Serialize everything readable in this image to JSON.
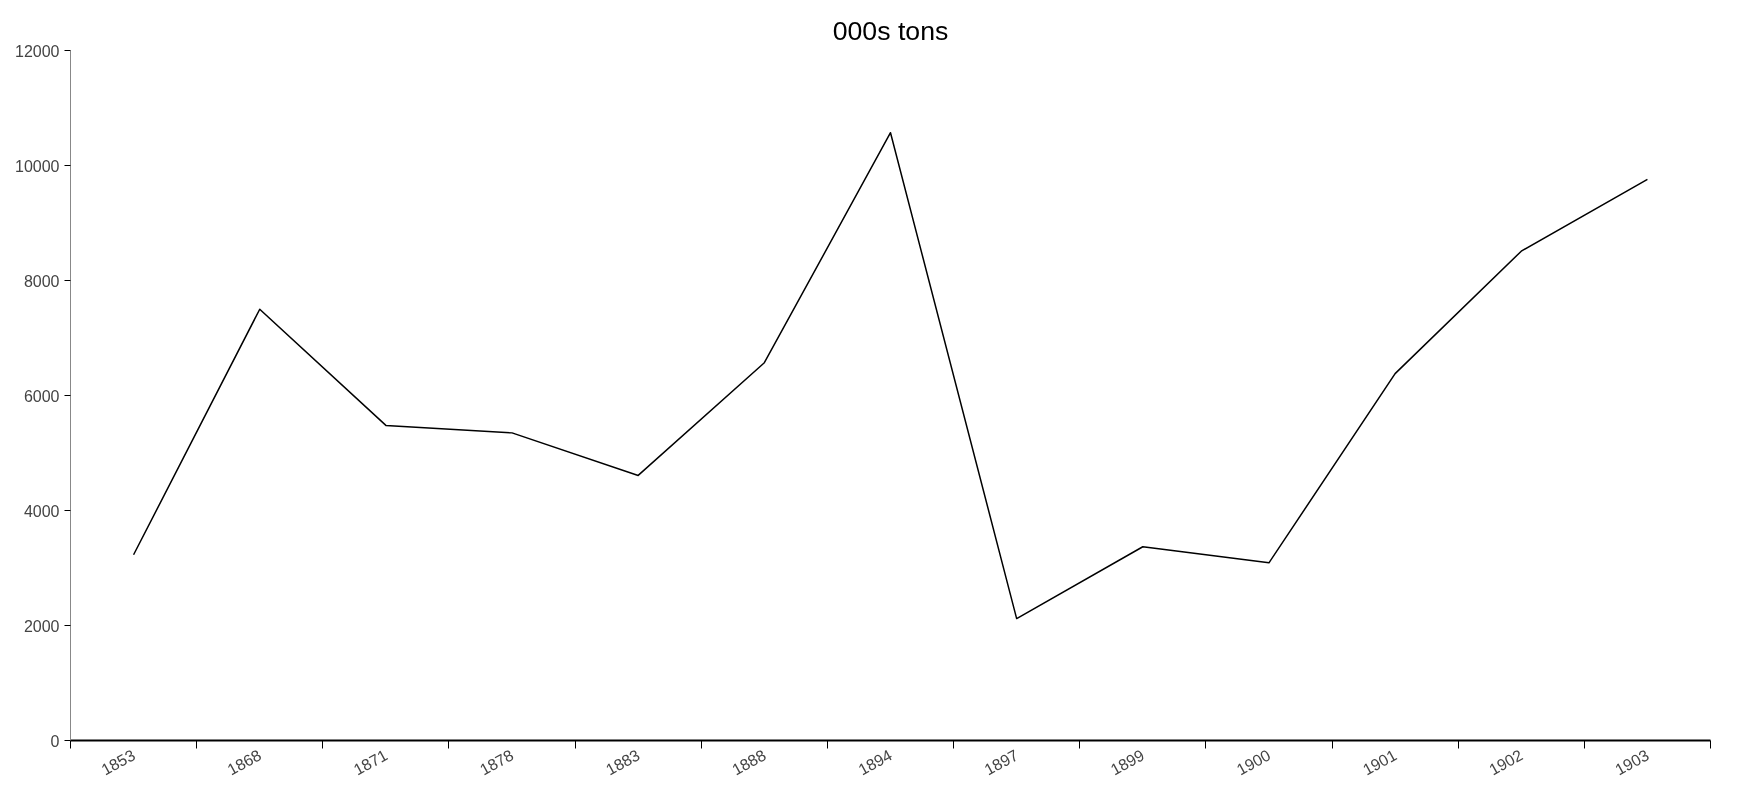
{
  "chart_data": {
    "type": "line",
    "title": "000s tons",
    "categories": [
      "1853",
      "1868",
      "1871",
      "1878",
      "1883",
      "1888",
      "1894",
      "1897",
      "1899",
      "1900",
      "1901",
      "1902",
      "1903"
    ],
    "series": [
      {
        "color": "#000000",
        "values": [
          3230,
          7500,
          5480,
          5350,
          4610,
          6570,
          10570,
          2120,
          3370,
          3090,
          6380,
          8510,
          9760
        ]
      }
    ],
    "ylim": [
      0,
      12000
    ],
    "yticks": [
      0,
      2000,
      4000,
      6000,
      8000,
      10000,
      12000
    ],
    "grid": false,
    "marker": "none",
    "line_style": "solid"
  }
}
